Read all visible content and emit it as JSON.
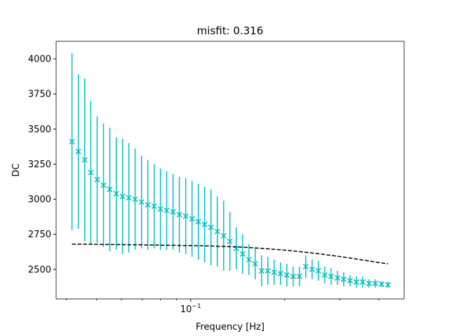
{
  "chart_data": {
    "type": "errorbar",
    "title": "misfit: 0.316",
    "xlabel": "Frequency [Hz]",
    "ylabel": "DC",
    "xscale": "log",
    "xlim": [
      0.0371,
      0.482
    ],
    "ylim": [
      2290,
      4125
    ],
    "xticks": [
      {
        "value": 0.1,
        "label": "10−1"
      }
    ],
    "xminorticks": [
      0.04,
      0.05,
      0.06,
      0.07,
      0.08,
      0.09,
      0.2,
      0.3,
      0.4
    ],
    "yticks": [
      2500,
      2750,
      3000,
      3250,
      3500,
      3750,
      4000
    ],
    "x": [
      0.0417,
      0.0437,
      0.0458,
      0.0479,
      0.0502,
      0.0526,
      0.0551,
      0.0578,
      0.0605,
      0.0634,
      0.0664,
      0.0696,
      0.0729,
      0.0764,
      0.08,
      0.0838,
      0.0878,
      0.092,
      0.0964,
      0.101,
      0.1058,
      0.1108,
      0.1161,
      0.1217,
      0.1275,
      0.1335,
      0.1399,
      0.1466,
      0.1536,
      0.1609,
      0.1686,
      0.1766,
      0.185,
      0.1938,
      0.2031,
      0.2128,
      0.2229,
      0.2335,
      0.2447,
      0.2563,
      0.2686,
      0.2814,
      0.2948,
      0.3088,
      0.3236,
      0.339,
      0.3552,
      0.3721,
      0.3898,
      0.4084,
      0.4279
    ],
    "series": [
      {
        "color": "#00bfbf",
        "marker": "x",
        "values": [
          3410,
          3340,
          3280,
          3190,
          3140,
          3100,
          3070,
          3040,
          3020,
          3010,
          3000,
          2980,
          2960,
          2950,
          2930,
          2920,
          2910,
          2890,
          2880,
          2860,
          2840,
          2820,
          2800,
          2770,
          2740,
          2700,
          2650,
          2610,
          2570,
          2540,
          2490,
          2490,
          2480,
          2470,
          2460,
          2450,
          2450,
          2520,
          2500,
          2490,
          2460,
          2450,
          2440,
          2430,
          2420,
          2410,
          2410,
          2400,
          2400,
          2395,
          2390
        ],
        "errors": [
          630,
          550,
          580,
          510,
          450,
          440,
          440,
          400,
          410,
          390,
          360,
          330,
          320,
          300,
          290,
          280,
          270,
          270,
          270,
          270,
          270,
          270,
          270,
          250,
          250,
          210,
          150,
          140,
          110,
          110,
          110,
          100,
          90,
          80,
          80,
          70,
          70,
          80,
          70,
          70,
          60,
          60,
          50,
          50,
          40,
          40,
          40,
          30,
          30,
          20,
          20
        ]
      },
      {
        "color": "#000000",
        "linestyle": "dashed",
        "values": [
          2680,
          2680,
          2680,
          2679,
          2679,
          2678,
          2678,
          2677,
          2677,
          2676,
          2676,
          2675,
          2674,
          2674,
          2673,
          2672,
          2672,
          2671,
          2670,
          2670,
          2669,
          2668,
          2667,
          2665,
          2664,
          2662,
          2660,
          2658,
          2656,
          2653,
          2650,
          2647,
          2643,
          2640,
          2636,
          2632,
          2627,
          2622,
          2617,
          2612,
          2606,
          2600,
          2594,
          2588,
          2581,
          2574,
          2567,
          2560,
          2553,
          2546,
          2540
        ]
      }
    ]
  }
}
